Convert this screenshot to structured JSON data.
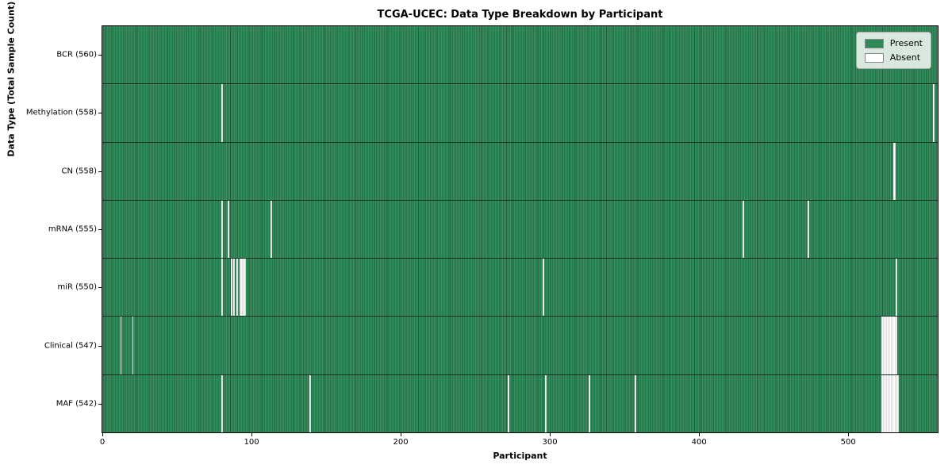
{
  "title": "TCGA-UCEC: Data Type Breakdown by Participant",
  "chart_data": {
    "type": "heatmap",
    "title": "TCGA-UCEC: Data Type Breakdown by Participant",
    "xlabel": "Participant",
    "ylabel": "Data Type (Total Sample Count)",
    "n_participants": 560,
    "x_ticks": [
      0,
      100,
      200,
      300,
      400,
      500
    ],
    "xlim": [
      0,
      560
    ],
    "grid": false,
    "legend_position": "upper right",
    "legend": [
      {
        "label": "Present",
        "color": "#2e8b57"
      },
      {
        "label": "Absent",
        "color": "#ffffff"
      }
    ],
    "value_encoding": "1 = data type present for participant (green), 0 = absent (white)",
    "rows": [
      {
        "label": "BCR (560)",
        "data_type": "BCR",
        "present_count": 560,
        "absent_count": 0,
        "absent_indices": []
      },
      {
        "label": "Methylation (558)",
        "data_type": "Methylation",
        "present_count": 558,
        "absent_count": 2,
        "absent_indices": [
          80,
          557
        ]
      },
      {
        "label": "CN (558)",
        "data_type": "CN",
        "present_count": 558,
        "absent_count": 2,
        "absent_indices": [
          530,
          531
        ]
      },
      {
        "label": "mRNA (555)",
        "data_type": "mRNA",
        "present_count": 555,
        "absent_count": 5,
        "absent_indices": [
          80,
          84,
          113,
          429,
          473
        ]
      },
      {
        "label": "miR (550)",
        "data_type": "miR",
        "present_count": 550,
        "absent_count": 10,
        "absent_indices": [
          80,
          86,
          88,
          90,
          92,
          93,
          94,
          95,
          295,
          532
        ]
      },
      {
        "label": "Clinical (547)",
        "data_type": "Clinical",
        "present_count": 547,
        "absent_count": 13,
        "absent_indices": [
          12,
          20,
          522,
          523,
          524,
          525,
          526,
          527,
          528,
          529,
          530,
          531,
          532
        ]
      },
      {
        "label": "MAF (542)",
        "data_type": "MAF",
        "present_count": 542,
        "absent_count": 18,
        "absent_indices": [
          80,
          139,
          272,
          297,
          326,
          357,
          522,
          523,
          524,
          525,
          526,
          527,
          528,
          529,
          530,
          531,
          532,
          533
        ]
      }
    ],
    "colors": {
      "present": "#2e8b57",
      "absent": "#ffffff",
      "row_divider": "#0a140c",
      "spine": "#000000"
    }
  }
}
